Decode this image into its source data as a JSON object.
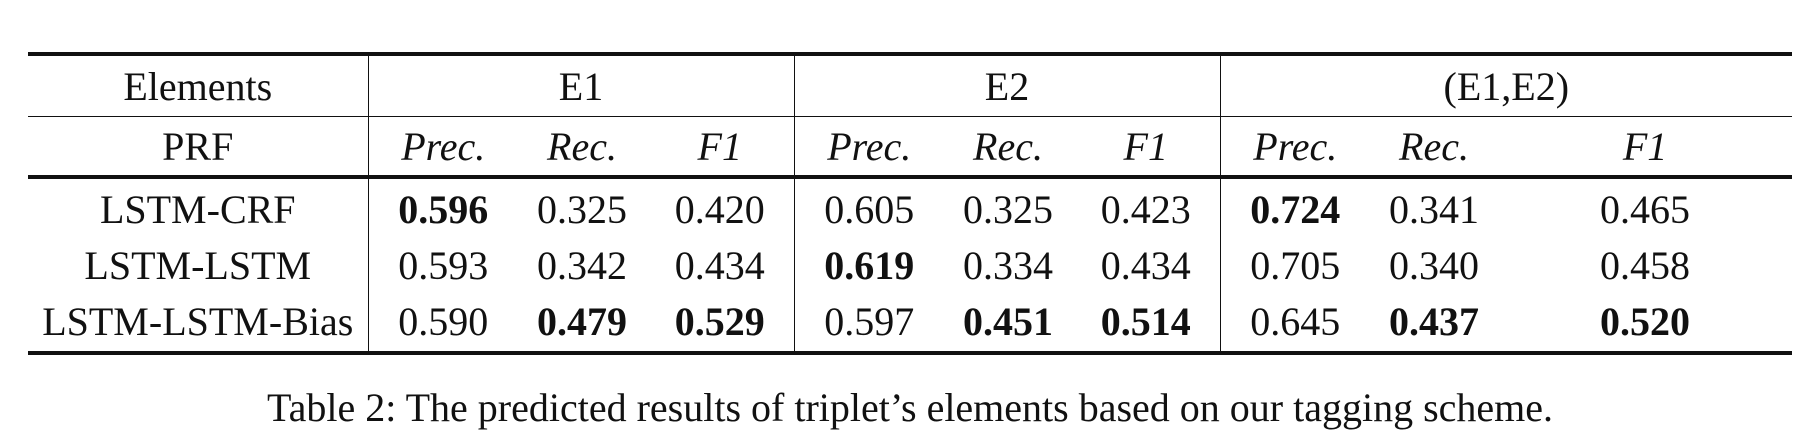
{
  "table": {
    "header": {
      "row_label_1": "Elements",
      "row_label_2": "PRF",
      "groups": [
        "E1",
        "E2",
        "(E1,E2)"
      ],
      "metrics": [
        "Prec.",
        "Rec.",
        "F1"
      ]
    },
    "rows": [
      {
        "model": "LSTM-CRF",
        "values": [
          "0.596",
          "0.325",
          "0.420",
          "0.605",
          "0.325",
          "0.423",
          "0.724",
          "0.341",
          "0.465"
        ],
        "bold": [
          true,
          false,
          false,
          false,
          false,
          false,
          true,
          false,
          false
        ]
      },
      {
        "model": "LSTM-LSTM",
        "values": [
          "0.593",
          "0.342",
          "0.434",
          "0.619",
          "0.334",
          "0.434",
          "0.705",
          "0.340",
          "0.458"
        ],
        "bold": [
          false,
          false,
          false,
          true,
          false,
          false,
          false,
          false,
          false
        ]
      },
      {
        "model": "LSTM-LSTM-Bias",
        "values": [
          "0.590",
          "0.479",
          "0.529",
          "0.597",
          "0.451",
          "0.514",
          "0.645",
          "0.437",
          "0.520"
        ],
        "bold": [
          false,
          true,
          true,
          false,
          true,
          true,
          false,
          true,
          true
        ]
      }
    ]
  },
  "caption": "Table 2: The predicted results of triplet’s elements based on our tagging scheme."
}
